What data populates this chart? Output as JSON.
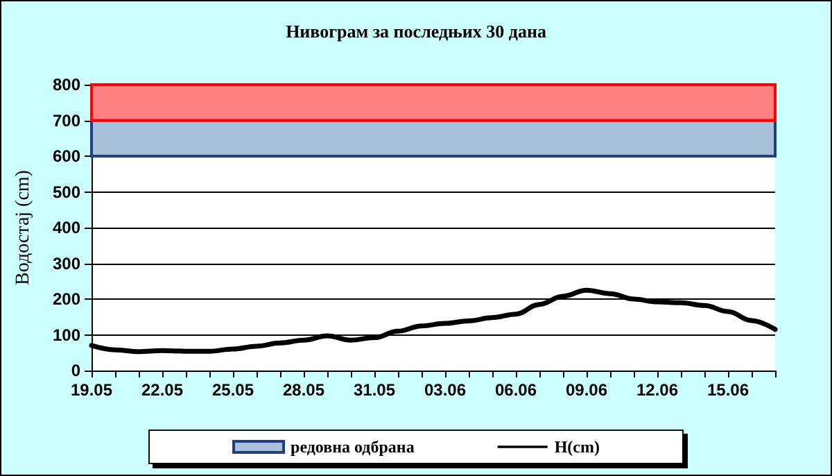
{
  "chart_data": {
    "type": "line",
    "title": "Нивограм за последњих 30 дана",
    "ylabel": "Водостај (cm)",
    "categories": [
      "19.05",
      null,
      null,
      "22.05",
      null,
      null,
      "25.05",
      null,
      null,
      "28.05",
      null,
      null,
      "31.05",
      null,
      null,
      "03.06",
      null,
      null,
      "06.06",
      null,
      null,
      "09.06",
      null,
      null,
      "12.06",
      null,
      null,
      "15.06",
      null,
      null
    ],
    "series": [
      {
        "name": "H(cm)",
        "color": "#000000",
        "values": [
          70,
          58,
          53,
          56,
          54,
          54,
          60,
          68,
          77,
          85,
          97,
          85,
          92,
          110,
          125,
          132,
          139,
          148,
          158,
          185,
          208,
          225,
          215,
          200,
          192,
          190,
          182,
          165,
          140,
          115
        ]
      }
    ],
    "ylim": [
      0,
      800
    ],
    "yticks": [
      0,
      100,
      200,
      300,
      400,
      500,
      600,
      700,
      800
    ],
    "grid": "y",
    "legend": "bottom",
    "marker": "none",
    "line_style": "solid",
    "bands": [
      {
        "axis": "y",
        "from": 600,
        "to": 700,
        "label": "редовна одбрана",
        "color": "#a9c0dd"
      },
      {
        "axis": "y",
        "from": 700,
        "to": 800,
        "color": "#ff8080"
      }
    ]
  }
}
